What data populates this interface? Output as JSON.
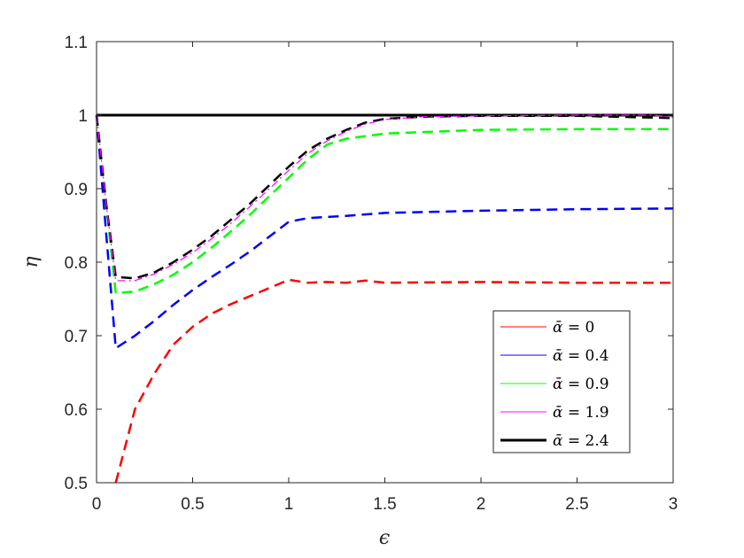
{
  "chart_data": {
    "type": "line",
    "xlabel": "ϵ",
    "ylabel": "η",
    "xlim": [
      0,
      3
    ],
    "ylim": [
      0.5,
      1.1
    ],
    "xticks": [
      "0",
      "0.5",
      "1",
      "1.5",
      "2",
      "2.5",
      "3"
    ],
    "yticks": [
      "0.5",
      "0.6",
      "0.7",
      "0.8",
      "0.9",
      "1",
      "1.1"
    ],
    "grid": false,
    "legend_position": "bottom-right",
    "series": [
      {
        "name": "ᾱ = 0",
        "color": "#ff0000",
        "style": "dashed",
        "points": [
          [
            0.1,
            0.5
          ],
          [
            0.2,
            0.6
          ],
          [
            0.3,
            0.648
          ],
          [
            0.4,
            0.688
          ],
          [
            0.5,
            0.712
          ],
          [
            0.6,
            0.73
          ],
          [
            0.7,
            0.743
          ],
          [
            0.8,
            0.754
          ],
          [
            0.9,
            0.765
          ],
          [
            1.0,
            0.776
          ],
          [
            1.1,
            0.772
          ],
          [
            1.2,
            0.773
          ],
          [
            1.3,
            0.772
          ],
          [
            1.4,
            0.775
          ],
          [
            1.5,
            0.772
          ],
          [
            2.0,
            0.773
          ],
          [
            2.5,
            0.772
          ],
          [
            3.0,
            0.772
          ]
        ]
      },
      {
        "name": "ᾱ = 0.4",
        "color": "#0000ff",
        "style": "dashed",
        "points": [
          [
            0,
            1.0
          ],
          [
            0.05,
            0.84
          ],
          [
            0.1,
            0.683
          ],
          [
            0.2,
            0.7
          ],
          [
            0.3,
            0.72
          ],
          [
            0.4,
            0.742
          ],
          [
            0.5,
            0.762
          ],
          [
            0.6,
            0.78
          ],
          [
            0.7,
            0.797
          ],
          [
            0.8,
            0.815
          ],
          [
            0.9,
            0.835
          ],
          [
            1.0,
            0.855
          ],
          [
            1.1,
            0.86
          ],
          [
            1.3,
            0.863
          ],
          [
            1.5,
            0.867
          ],
          [
            2.0,
            0.87
          ],
          [
            2.5,
            0.872
          ],
          [
            3.0,
            0.873
          ]
        ]
      },
      {
        "name": "ᾱ = 0.9",
        "color": "#00ff00",
        "style": "dashed",
        "points": [
          [
            0,
            1.0
          ],
          [
            0.05,
            0.88
          ],
          [
            0.1,
            0.758
          ],
          [
            0.2,
            0.76
          ],
          [
            0.3,
            0.77
          ],
          [
            0.4,
            0.783
          ],
          [
            0.5,
            0.8
          ],
          [
            0.6,
            0.82
          ],
          [
            0.7,
            0.842
          ],
          [
            0.8,
            0.865
          ],
          [
            0.9,
            0.89
          ],
          [
            1.0,
            0.915
          ],
          [
            1.1,
            0.94
          ],
          [
            1.2,
            0.96
          ],
          [
            1.3,
            0.968
          ],
          [
            1.5,
            0.975
          ],
          [
            2.0,
            0.98
          ],
          [
            2.5,
            0.981
          ],
          [
            3.0,
            0.981
          ]
        ]
      },
      {
        "name": "ᾱ = 1.9",
        "color": "#ff00ff",
        "style": "dash-dot",
        "points": [
          [
            0,
            1.0
          ],
          [
            0.05,
            0.88
          ],
          [
            0.1,
            0.775
          ],
          [
            0.2,
            0.775
          ],
          [
            0.3,
            0.784
          ],
          [
            0.4,
            0.797
          ],
          [
            0.5,
            0.813
          ],
          [
            0.6,
            0.832
          ],
          [
            0.7,
            0.853
          ],
          [
            0.8,
            0.876
          ],
          [
            0.9,
            0.9
          ],
          [
            1.0,
            0.925
          ],
          [
            1.1,
            0.948
          ],
          [
            1.2,
            0.965
          ],
          [
            1.3,
            0.978
          ],
          [
            1.4,
            0.988
          ],
          [
            1.5,
            0.994
          ],
          [
            1.7,
            0.998
          ],
          [
            2.0,
            0.999
          ],
          [
            2.5,
            1.0
          ],
          [
            2.9,
            1.0
          ],
          [
            3.0,
            0.997
          ]
        ]
      },
      {
        "name": "ᾱ = 2.4",
        "color": "#000000",
        "style": "solid",
        "points": [
          [
            0,
            1.0
          ],
          [
            3.0,
            1.0
          ]
        ]
      },
      {
        "name": "",
        "color": "#000000",
        "style": "dashed",
        "points": [
          [
            0,
            1.0
          ],
          [
            0.05,
            0.88
          ],
          [
            0.1,
            0.78
          ],
          [
            0.2,
            0.778
          ],
          [
            0.3,
            0.786
          ],
          [
            0.4,
            0.8
          ],
          [
            0.5,
            0.817
          ],
          [
            0.6,
            0.836
          ],
          [
            0.7,
            0.858
          ],
          [
            0.8,
            0.88
          ],
          [
            0.9,
            0.905
          ],
          [
            1.0,
            0.93
          ],
          [
            1.1,
            0.952
          ],
          [
            1.2,
            0.968
          ],
          [
            1.3,
            0.98
          ],
          [
            1.4,
            0.99
          ],
          [
            1.5,
            0.995
          ],
          [
            1.7,
            0.998
          ],
          [
            2.0,
            0.999
          ],
          [
            2.5,
            0.999
          ],
          [
            3.0,
            0.996
          ]
        ]
      }
    ],
    "legend": [
      {
        "symbol": "ᾱ",
        "equals": " = ",
        "value": "0",
        "color": "#ff0000",
        "width": 1
      },
      {
        "symbol": "ᾱ",
        "equals": " = ",
        "value": "0.4",
        "color": "#0000ff",
        "width": 1
      },
      {
        "symbol": "ᾱ",
        "equals": " = ",
        "value": "0.9",
        "color": "#00ff00",
        "width": 1
      },
      {
        "symbol": "ᾱ",
        "equals": " = ",
        "value": "1.9",
        "color": "#ff00ff",
        "width": 1
      },
      {
        "symbol": "ᾱ",
        "equals": " = ",
        "value": "2.4",
        "color": "#000000",
        "width": 3
      }
    ]
  }
}
